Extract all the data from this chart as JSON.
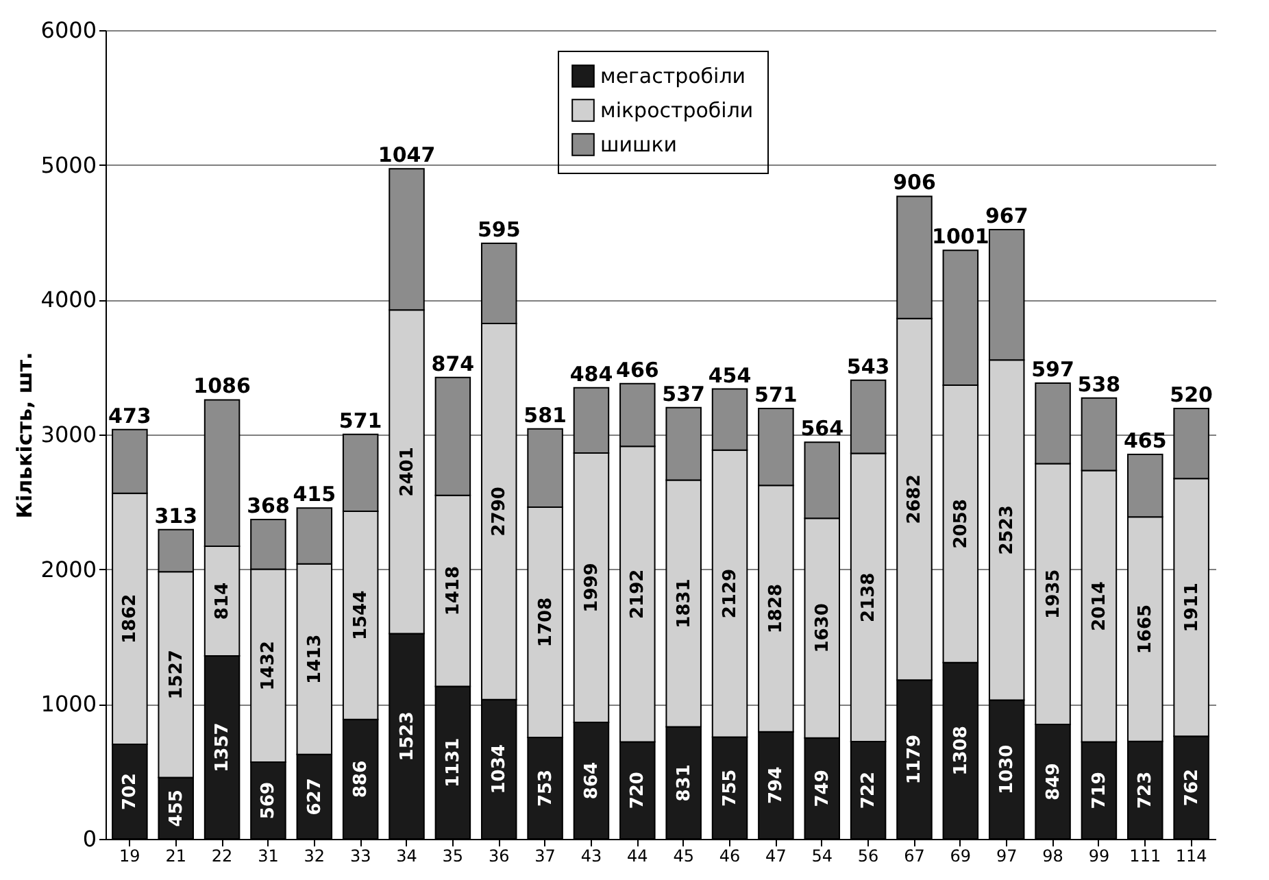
{
  "chart_data": {
    "type": "bar",
    "stacked": true,
    "ylabel": "Кількість, шт.",
    "ylim": [
      0,
      6000
    ],
    "yticks": [
      0,
      1000,
      2000,
      3000,
      4000,
      5000,
      6000
    ],
    "grid": "y",
    "legend": "top",
    "data_labels": true,
    "categories": [
      "19",
      "21",
      "22",
      "31",
      "32",
      "33",
      "34",
      "35",
      "36",
      "37",
      "43",
      "44",
      "45",
      "46",
      "47",
      "54",
      "56",
      "67",
      "69",
      "97",
      "98",
      "99",
      "111",
      "114"
    ],
    "series": [
      {
        "name": "мегастробіли",
        "color": "#1a1a1a",
        "values": [
          702,
          455,
          1357,
          569,
          627,
          886,
          1523,
          1131,
          1034,
          753,
          864,
          720,
          831,
          755,
          794,
          749,
          722,
          1179,
          1308,
          1030,
          849,
          719,
          723,
          762
        ]
      },
      {
        "name": "мікростробіли",
        "color": "#d0d0d0",
        "values": [
          1862,
          1527,
          814,
          1432,
          1413,
          1544,
          2401,
          1418,
          2790,
          1708,
          1999,
          2192,
          1831,
          2129,
          1828,
          1630,
          2138,
          2682,
          2058,
          2523,
          1935,
          2014,
          1665,
          1911
        ]
      },
      {
        "name": "шишки",
        "color": "#8c8c8c",
        "values": [
          473,
          313,
          1086,
          368,
          415,
          571,
          1047,
          874,
          595,
          581,
          484,
          466,
          537,
          454,
          571,
          564,
          543,
          906,
          1001,
          967,
          597,
          538,
          465,
          520
        ]
      }
    ]
  }
}
